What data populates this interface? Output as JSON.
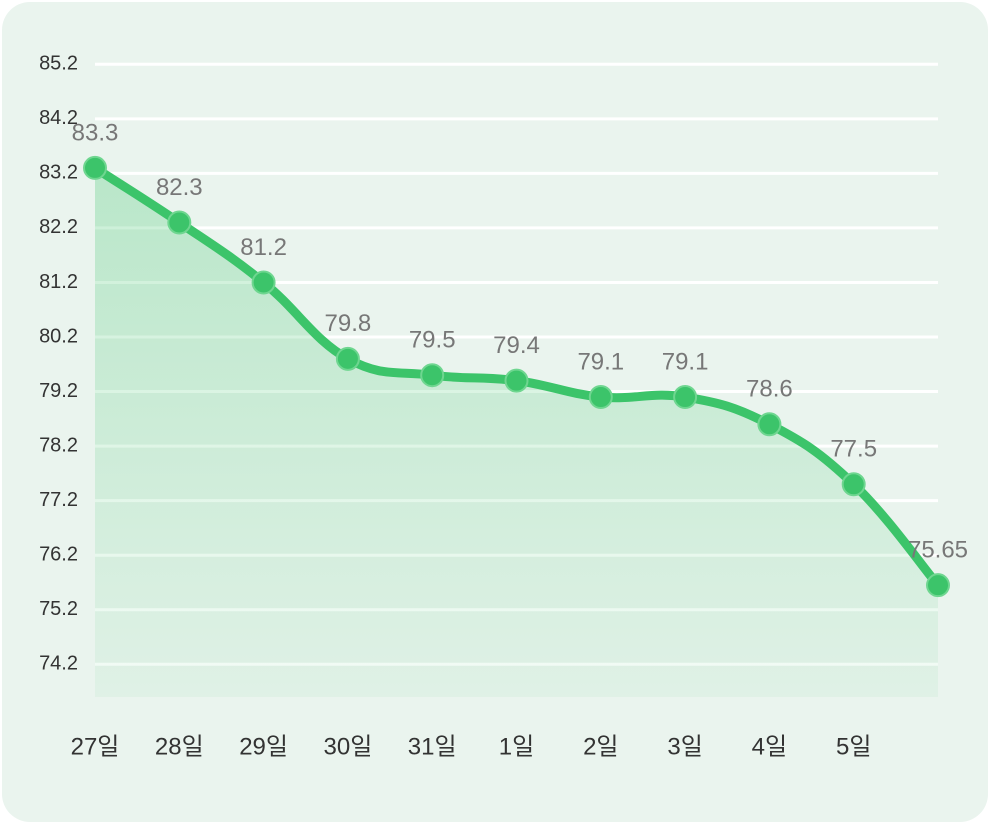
{
  "chart_data": {
    "type": "line",
    "categories": [
      "27일",
      "28일",
      "29일",
      "30일",
      "31일",
      "1일",
      "2일",
      "3일",
      "4일",
      "5일",
      null
    ],
    "series": [
      {
        "color": "#3cc46a",
        "values": [
          83.3,
          82.3,
          81.2,
          79.8,
          79.5,
          79.4,
          79.1,
          79.1,
          78.6,
          77.5,
          75.65
        ]
      }
    ],
    "ylim": [
      73.6,
      85.2
    ],
    "yticks": [
      74.2,
      75.2,
      76.2,
      77.2,
      78.2,
      79.2,
      80.2,
      81.2,
      82.2,
      83.2,
      84.2,
      85.2
    ],
    "grid": true
  }
}
